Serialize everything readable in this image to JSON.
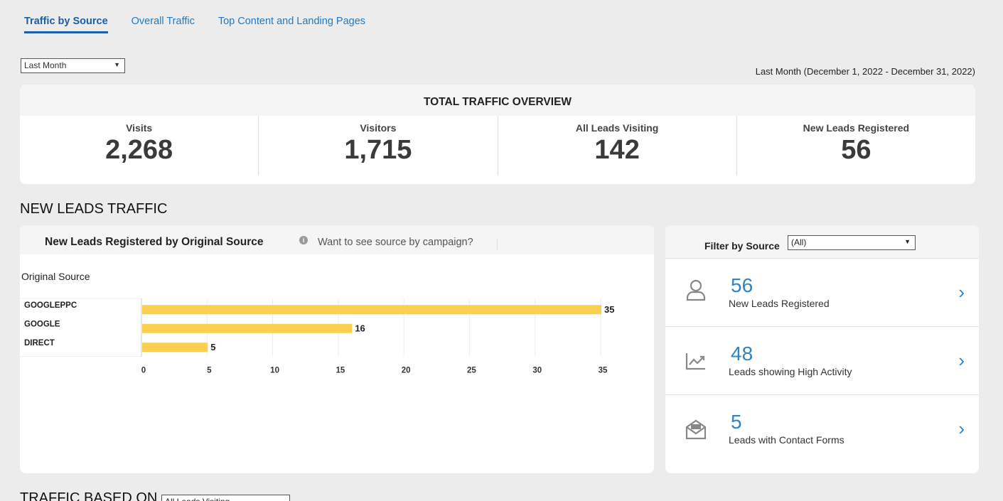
{
  "tabs": [
    {
      "label": "Traffic by Source",
      "active": true
    },
    {
      "label": "Overall Traffic",
      "active": false
    },
    {
      "label": "Top Content and Landing Pages",
      "active": false
    }
  ],
  "period_select": {
    "value": "Last Month"
  },
  "date_range": "Last Month (December 1, 2022 - December 31, 2022)",
  "overview": {
    "title": "TOTAL TRAFFIC OVERVIEW",
    "kpis": [
      {
        "label": "Visits",
        "value": "2,268"
      },
      {
        "label": "Visitors",
        "value": "1,715"
      },
      {
        "label": "All Leads Visiting",
        "value": "142"
      },
      {
        "label": "New Leads Registered",
        "value": "56"
      }
    ]
  },
  "section_title": "NEW LEADS TRAFFIC",
  "chart_panel": {
    "title": "New Leads Registered by Original Source",
    "campaign_link": "Want to see source by campaign?",
    "axis_header": "Original Source"
  },
  "chart_data": {
    "type": "bar",
    "orientation": "horizontal",
    "categories": [
      "GOOGLEPPC",
      "GOOGLE",
      "DIRECT"
    ],
    "values": [
      35,
      16,
      5
    ],
    "xticks": [
      0,
      5,
      10,
      15,
      20,
      25,
      30,
      35
    ],
    "xlim": [
      0,
      35
    ],
    "grid": true,
    "color": "#fbcf4f"
  },
  "filter_panel": {
    "label": "Filter by Source",
    "select_value": "(All)",
    "stats": [
      {
        "value": "56",
        "label": "New Leads Registered",
        "icon": "person-icon"
      },
      {
        "value": "48",
        "label": "Leads showing High Activity",
        "icon": "trend-chart-icon"
      },
      {
        "value": "5",
        "label": "Leads with Contact Forms",
        "icon": "envelope-icon"
      }
    ]
  },
  "bottom": {
    "title": "TRAFFIC BASED ON",
    "select_value": "All Leads Visiting"
  },
  "colors": {
    "accent": "#2d84c6",
    "tab_active": "#1a5fa8",
    "bar": "#fbcf4f"
  }
}
